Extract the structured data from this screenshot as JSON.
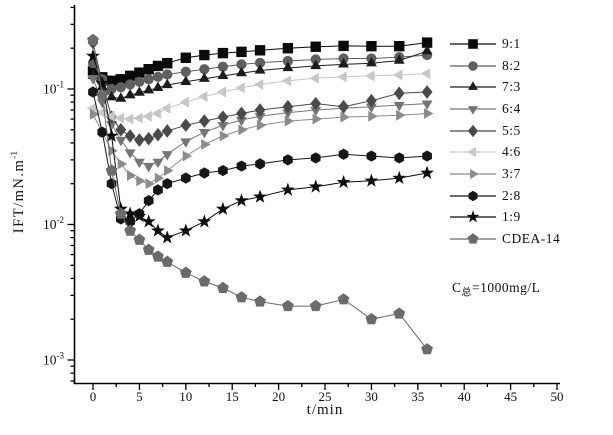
{
  "figure": {
    "y_axis_label": {
      "main": "IFT/mN.m",
      "sup": "-1"
    },
    "x_axis_label": "t/min",
    "annotation": {
      "prefix": "C",
      "sub": "总",
      "suffix": "=1000mg/L"
    },
    "x_ticks": [
      0,
      5,
      10,
      15,
      20,
      25,
      30,
      35,
      40,
      45,
      50
    ],
    "y_ticks": [
      {
        "base": "10",
        "exp": "-1",
        "value": 0.1
      },
      {
        "base": "10",
        "exp": "-2",
        "value": 0.01
      },
      {
        "base": "10",
        "exp": "-3",
        "value": 0.001
      }
    ]
  },
  "chart_data": {
    "type": "line",
    "title": "",
    "xlabel": "t/min",
    "ylabel": "IFT/mN.m^-1",
    "y_scale": "log",
    "xlim": [
      -2,
      50.5
    ],
    "ylim": [
      0.00068,
      0.45
    ],
    "grid": false,
    "legend_position": "right",
    "annotation": "C总=1000mg/L",
    "x": [
      0,
      1,
      2,
      3,
      4,
      5,
      6,
      7,
      8,
      10,
      12,
      14,
      16,
      18,
      21,
      24,
      27,
      30,
      33,
      36
    ],
    "series": [
      {
        "name": "9:1",
        "marker": "square",
        "color": "#0a0a0a",
        "values": [
          0.135,
          0.122,
          0.115,
          0.118,
          0.125,
          0.132,
          0.14,
          0.148,
          0.155,
          0.17,
          0.178,
          0.184,
          0.188,
          0.193,
          0.2,
          0.205,
          0.208,
          0.207,
          0.207,
          0.22
        ]
      },
      {
        "name": "8:2",
        "marker": "circle",
        "color": "#5f5f5f",
        "values": [
          0.155,
          0.118,
          0.1,
          0.103,
          0.108,
          0.113,
          0.118,
          0.123,
          0.128,
          0.134,
          0.14,
          0.146,
          0.152,
          0.156,
          0.161,
          0.165,
          0.168,
          0.168,
          0.172,
          0.178
        ]
      },
      {
        "name": "7:3",
        "marker": "triangle-up",
        "color": "#1c1c1c",
        "values": [
          0.125,
          0.103,
          0.087,
          0.085,
          0.09,
          0.094,
          0.098,
          0.102,
          0.107,
          0.113,
          0.119,
          0.125,
          0.131,
          0.137,
          0.143,
          0.148,
          0.152,
          0.155,
          0.162,
          0.19
        ]
      },
      {
        "name": "6:4",
        "marker": "triangle-down",
        "color": "#757575",
        "values": [
          0.12,
          0.08,
          0.055,
          0.042,
          0.034,
          0.029,
          0.027,
          0.029,
          0.033,
          0.041,
          0.048,
          0.054,
          0.059,
          0.063,
          0.067,
          0.07,
          0.072,
          0.074,
          0.076,
          0.078
        ]
      },
      {
        "name": "5:5",
        "marker": "diamond",
        "color": "#4a4a4a",
        "values": [
          0.22,
          0.11,
          0.062,
          0.05,
          0.045,
          0.042,
          0.043,
          0.046,
          0.049,
          0.054,
          0.058,
          0.062,
          0.066,
          0.07,
          0.074,
          0.078,
          0.074,
          0.082,
          0.093,
          0.095
        ]
      },
      {
        "name": "4:6",
        "marker": "triangle-left",
        "color": "#c7c7c7",
        "values": [
          0.072,
          0.067,
          0.063,
          0.061,
          0.06,
          0.061,
          0.063,
          0.066,
          0.072,
          0.08,
          0.088,
          0.095,
          0.102,
          0.108,
          0.115,
          0.12,
          0.123,
          0.125,
          0.127,
          0.13
        ]
      },
      {
        "name": "3:7",
        "marker": "triangle-right",
        "color": "#8c8c8c",
        "values": [
          0.065,
          0.048,
          0.035,
          0.028,
          0.023,
          0.021,
          0.02,
          0.022,
          0.025,
          0.032,
          0.039,
          0.045,
          0.05,
          0.054,
          0.058,
          0.06,
          0.062,
          0.063,
          0.064,
          0.066
        ]
      },
      {
        "name": "2:8",
        "marker": "hexagon",
        "color": "#161616",
        "values": [
          0.095,
          0.048,
          0.02,
          0.011,
          0.0105,
          0.012,
          0.015,
          0.018,
          0.02,
          0.022,
          0.024,
          0.025,
          0.027,
          0.028,
          0.03,
          0.031,
          0.033,
          0.032,
          0.031,
          0.032
        ]
      },
      {
        "name": "1:9",
        "marker": "star",
        "color": "#0d0d0d",
        "values": [
          0.175,
          0.11,
          0.045,
          0.013,
          0.012,
          0.0115,
          0.0105,
          0.009,
          0.008,
          0.009,
          0.0105,
          0.013,
          0.015,
          0.016,
          0.018,
          0.019,
          0.0205,
          0.021,
          0.022,
          0.024
        ]
      },
      {
        "name": "CDEA-14",
        "marker": "pentagon",
        "color": "#6b6b6b",
        "values": [
          0.23,
          0.09,
          0.025,
          0.012,
          0.009,
          0.0077,
          0.0065,
          0.0058,
          0.0053,
          0.0044,
          0.0038,
          0.0034,
          0.0029,
          0.0027,
          0.0025,
          0.0025,
          0.0028,
          0.002,
          0.0022,
          0.0012
        ]
      }
    ]
  }
}
